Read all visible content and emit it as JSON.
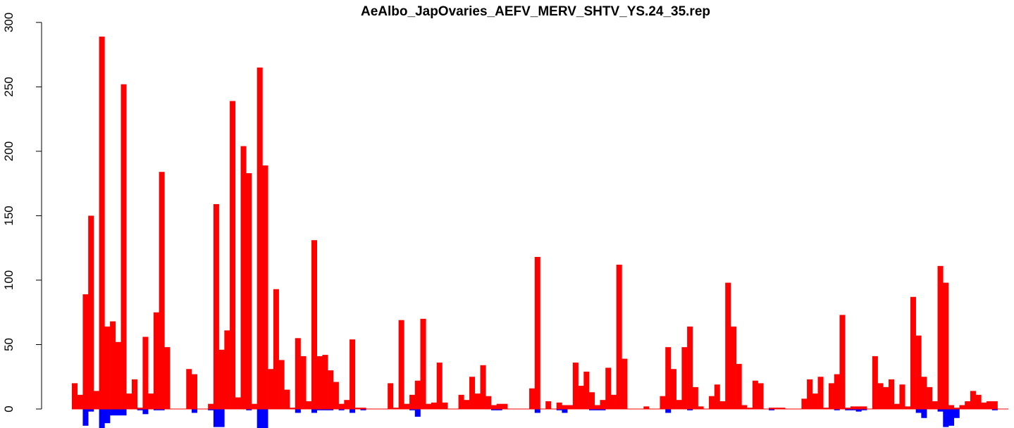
{
  "chart_data": {
    "type": "bar",
    "title": "AeAlbo_JapOvaries_AEFV_MERV_SHTV_YS.24_35.rep",
    "xlabel": "",
    "ylabel": "",
    "ylim": [
      -17,
      300
    ],
    "yticks": [
      0,
      50,
      100,
      150,
      200,
      250,
      300
    ],
    "grid": false,
    "colors": {
      "positive": "#ff0000",
      "negative": "#0000ff",
      "baseline": "#ff0000"
    },
    "series": [
      {
        "name": "",
        "values": [
          20,
          11,
          89,
          150,
          14,
          289,
          64,
          68,
          52,
          252,
          12,
          23,
          1,
          56,
          12,
          75,
          184,
          48,
          0,
          0,
          0,
          31,
          27,
          0,
          0,
          4,
          159,
          46,
          61,
          239,
          9,
          204,
          183,
          4,
          265,
          189,
          31,
          93,
          38,
          15,
          1,
          55,
          41,
          6,
          131,
          41,
          42,
          30,
          21,
          4,
          7,
          54,
          1,
          1,
          0,
          0,
          0,
          0,
          20,
          1,
          69,
          4,
          11,
          22,
          70,
          4,
          5,
          36,
          5,
          0,
          0,
          11,
          7,
          25,
          12,
          34,
          10,
          3,
          4,
          4,
          0,
          0,
          0,
          0,
          16,
          118,
          0,
          6,
          0,
          5,
          3,
          3,
          36,
          18,
          29,
          13,
          3,
          7,
          32,
          11,
          112,
          39,
          0,
          0,
          0,
          2,
          0,
          0,
          10,
          48,
          31,
          7,
          48,
          64,
          17,
          2,
          0,
          10,
          19,
          6,
          98,
          64,
          35,
          3,
          1,
          22,
          20,
          0,
          1,
          1,
          1,
          0,
          0,
          0,
          8,
          23,
          12,
          25,
          1,
          20,
          27,
          73,
          1,
          2,
          2,
          2,
          0,
          41,
          20,
          17,
          23,
          4,
          19,
          2,
          87,
          57,
          25,
          17,
          6,
          111,
          98,
          3,
          1,
          3,
          6,
          14,
          11,
          5,
          6,
          6,
          0,
          0
        ]
      },
      {
        "name": "",
        "values": [
          0,
          0,
          -13,
          -2,
          0,
          -15,
          -11,
          -5,
          -5,
          -5,
          0,
          0,
          -1,
          -4,
          0,
          -1,
          -1,
          0,
          0,
          0,
          0,
          0,
          -3,
          0,
          0,
          -1,
          -14,
          -14,
          0,
          0,
          0,
          0,
          -1,
          0,
          -15,
          -15,
          0,
          0,
          0,
          0,
          0,
          -3,
          0,
          0,
          -3,
          -1,
          -1,
          -1,
          0,
          -1,
          0,
          -3,
          0,
          -1,
          0,
          0,
          0,
          0,
          0,
          0,
          0,
          0,
          -1,
          -6,
          0,
          0,
          0,
          0,
          0,
          0,
          0,
          0,
          0,
          0,
          0,
          0,
          0,
          -1,
          -1,
          0,
          0,
          0,
          0,
          0,
          0,
          -3,
          0,
          0,
          0,
          -1,
          -3,
          0,
          0,
          0,
          0,
          -1,
          -1,
          -1,
          0,
          0,
          0,
          0,
          0,
          0,
          0,
          0,
          0,
          0,
          0,
          -3,
          0,
          0,
          0,
          -1,
          0,
          0,
          0,
          0,
          0,
          0,
          0,
          0,
          0,
          0,
          0,
          0,
          0,
          0,
          -1,
          0,
          0,
          0,
          0,
          0,
          0,
          0,
          0,
          0,
          0,
          0,
          -1,
          0,
          -1,
          -1,
          -2,
          -1,
          0,
          0,
          0,
          0,
          0,
          0,
          0,
          0,
          0,
          -3,
          -7,
          0,
          0,
          -2,
          -14,
          -13,
          -7,
          0,
          0,
          0,
          0,
          0,
          0,
          -1,
          0,
          0
        ]
      }
    ]
  }
}
